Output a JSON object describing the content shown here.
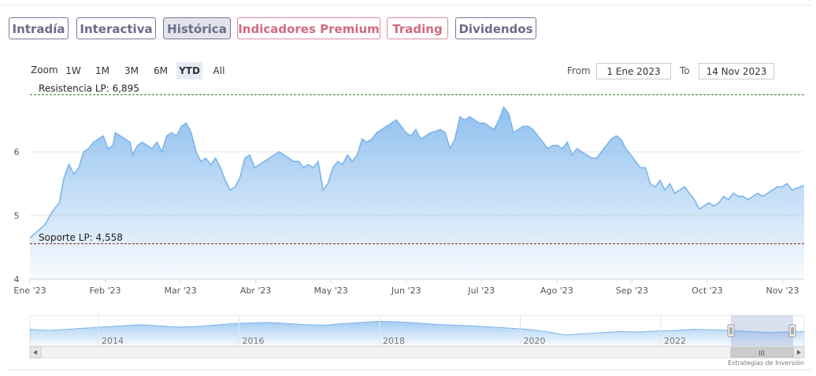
{
  "tabs": [
    {
      "label": "Intradía",
      "active": false,
      "premium": false
    },
    {
      "label": "Interactiva",
      "active": false,
      "premium": false
    },
    {
      "label": "Histórica",
      "active": true,
      "premium": false
    },
    {
      "label": "Indicadores Premium",
      "active": false,
      "premium": true
    },
    {
      "label": "Trading",
      "active": false,
      "premium": true
    },
    {
      "label": "Dividendos",
      "active": false,
      "premium": false
    }
  ],
  "zoom": {
    "label": "Zoom",
    "buttons": [
      "1W",
      "1M",
      "3M",
      "6M",
      "YTD",
      "All"
    ],
    "selected": "YTD"
  },
  "range": {
    "from_label": "From",
    "from_value": "1 Ene 2023",
    "to_label": "To",
    "to_value": "14 Nov 2023"
  },
  "credit": "Estrategias de Inversión",
  "colors": {
    "line": "#7cb5ec",
    "resistance": "#2e7d32",
    "support": "#8b1a1a",
    "tab_border": "#7a7a96",
    "premium_border": "#d98b99"
  },
  "chart_data": {
    "type": "area",
    "ylim": [
      4,
      7
    ],
    "yticks": [
      4,
      5,
      6
    ],
    "xlabels": [
      "Ene '23",
      "Feb '23",
      "Mar '23",
      "Abr '23",
      "May '23",
      "Jun '23",
      "Jul '23",
      "Ago '23",
      "Sep '23",
      "Oct '23",
      "Nov '23"
    ],
    "x_range_days": [
      0,
      317
    ],
    "resistance": {
      "label": "Resistencia LP: 6,895",
      "value": 6.895
    },
    "support": {
      "label": "Soporte LP: 4,558",
      "value": 4.558
    },
    "series": [
      {
        "values": [
          [
            0,
            4.65
          ],
          [
            3,
            4.75
          ],
          [
            6,
            4.85
          ],
          [
            9,
            5.05
          ],
          [
            12,
            5.2
          ],
          [
            14,
            5.6
          ],
          [
            16,
            5.8
          ],
          [
            18,
            5.65
          ],
          [
            20,
            5.75
          ],
          [
            22,
            6.0
          ],
          [
            24,
            6.05
          ],
          [
            26,
            6.15
          ],
          [
            28,
            6.2
          ],
          [
            30,
            6.25
          ],
          [
            32,
            6.05
          ],
          [
            34,
            6.1
          ],
          [
            35,
            6.3
          ],
          [
            37,
            6.25
          ],
          [
            39,
            6.2
          ],
          [
            41,
            6.15
          ],
          [
            42,
            5.95
          ],
          [
            44,
            6.1
          ],
          [
            46,
            6.15
          ],
          [
            48,
            6.1
          ],
          [
            50,
            6.05
          ],
          [
            52,
            6.15
          ],
          [
            54,
            6.0
          ],
          [
            56,
            6.25
          ],
          [
            58,
            6.3
          ],
          [
            60,
            6.25
          ],
          [
            62,
            6.4
          ],
          [
            64,
            6.45
          ],
          [
            66,
            6.3
          ],
          [
            68,
            6.0
          ],
          [
            70,
            5.85
          ],
          [
            72,
            5.9
          ],
          [
            74,
            5.8
          ],
          [
            76,
            5.9
          ],
          [
            78,
            5.75
          ],
          [
            80,
            5.55
          ],
          [
            82,
            5.4
          ],
          [
            84,
            5.45
          ],
          [
            86,
            5.6
          ],
          [
            88,
            5.9
          ],
          [
            90,
            5.95
          ],
          [
            92,
            5.75
          ],
          [
            94,
            5.8
          ],
          [
            96,
            5.85
          ],
          [
            98,
            5.9
          ],
          [
            100,
            5.95
          ],
          [
            102,
            6.0
          ],
          [
            104,
            5.95
          ],
          [
            106,
            5.9
          ],
          [
            108,
            5.85
          ],
          [
            110,
            5.85
          ],
          [
            112,
            5.75
          ],
          [
            114,
            5.8
          ],
          [
            116,
            5.75
          ],
          [
            118,
            5.85
          ],
          [
            120,
            5.4
          ],
          [
            122,
            5.5
          ],
          [
            124,
            5.75
          ],
          [
            126,
            5.85
          ],
          [
            128,
            5.8
          ],
          [
            130,
            5.95
          ],
          [
            132,
            5.85
          ],
          [
            134,
            5.95
          ],
          [
            136,
            6.2
          ],
          [
            138,
            6.15
          ],
          [
            140,
            6.2
          ],
          [
            142,
            6.3
          ],
          [
            144,
            6.35
          ],
          [
            146,
            6.4
          ],
          [
            148,
            6.45
          ],
          [
            150,
            6.5
          ],
          [
            152,
            6.4
          ],
          [
            154,
            6.3
          ],
          [
            156,
            6.25
          ],
          [
            158,
            6.35
          ],
          [
            160,
            6.2
          ],
          [
            162,
            6.25
          ],
          [
            164,
            6.3
          ],
          [
            166,
            6.32
          ],
          [
            168,
            6.35
          ],
          [
            170,
            6.3
          ],
          [
            172,
            6.05
          ],
          [
            174,
            6.2
          ],
          [
            176,
            6.55
          ],
          [
            178,
            6.5
          ],
          [
            180,
            6.55
          ],
          [
            182,
            6.5
          ],
          [
            184,
            6.45
          ],
          [
            186,
            6.45
          ],
          [
            188,
            6.4
          ],
          [
            190,
            6.35
          ],
          [
            192,
            6.5
          ],
          [
            194,
            6.7
          ],
          [
            196,
            6.6
          ],
          [
            198,
            6.3
          ],
          [
            200,
            6.35
          ],
          [
            202,
            6.4
          ],
          [
            204,
            6.4
          ],
          [
            206,
            6.35
          ],
          [
            208,
            6.25
          ],
          [
            210,
            6.15
          ],
          [
            212,
            6.05
          ],
          [
            214,
            6.1
          ],
          [
            216,
            6.1
          ],
          [
            218,
            6.05
          ],
          [
            220,
            6.15
          ],
          [
            222,
            5.95
          ],
          [
            224,
            6.05
          ],
          [
            226,
            6.0
          ],
          [
            228,
            5.95
          ],
          [
            230,
            5.9
          ],
          [
            232,
            5.9
          ],
          [
            234,
            6.0
          ],
          [
            236,
            6.1
          ],
          [
            238,
            6.2
          ],
          [
            240,
            6.25
          ],
          [
            242,
            6.2
          ],
          [
            244,
            6.05
          ],
          [
            246,
            5.95
          ],
          [
            248,
            5.85
          ],
          [
            250,
            5.75
          ],
          [
            252,
            5.75
          ],
          [
            254,
            5.5
          ],
          [
            256,
            5.45
          ],
          [
            258,
            5.55
          ],
          [
            260,
            5.4
          ],
          [
            262,
            5.5
          ],
          [
            264,
            5.35
          ],
          [
            266,
            5.4
          ],
          [
            268,
            5.45
          ],
          [
            270,
            5.35
          ],
          [
            272,
            5.25
          ],
          [
            274,
            5.1
          ],
          [
            276,
            5.15
          ],
          [
            278,
            5.2
          ],
          [
            280,
            5.15
          ],
          [
            282,
            5.2
          ],
          [
            284,
            5.3
          ],
          [
            286,
            5.25
          ],
          [
            288,
            5.35
          ],
          [
            290,
            5.3
          ],
          [
            292,
            5.3
          ],
          [
            294,
            5.25
          ],
          [
            296,
            5.3
          ],
          [
            298,
            5.35
          ],
          [
            300,
            5.3
          ],
          [
            302,
            5.35
          ],
          [
            304,
            5.4
          ],
          [
            306,
            5.45
          ],
          [
            308,
            5.45
          ],
          [
            310,
            5.5
          ],
          [
            312,
            5.4
          ],
          [
            317,
            5.47
          ]
        ]
      }
    ]
  },
  "navigator": {
    "year_labels": [
      "2014",
      "2016",
      "2018",
      "2020",
      "2022"
    ],
    "scroll_thumb": "III",
    "series": [
      0.6,
      0.55,
      0.6,
      0.65,
      0.7,
      0.75,
      0.8,
      0.75,
      0.7,
      0.72,
      0.78,
      0.85,
      0.88,
      0.9,
      0.85,
      0.8,
      0.78,
      0.85,
      0.9,
      0.95,
      0.92,
      0.88,
      0.82,
      0.78,
      0.75,
      0.7,
      0.65,
      0.6,
      0.5,
      0.35,
      0.4,
      0.45,
      0.5,
      0.48,
      0.52,
      0.55,
      0.6,
      0.58,
      0.55,
      0.5,
      0.45,
      0.48,
      0.5
    ]
  }
}
